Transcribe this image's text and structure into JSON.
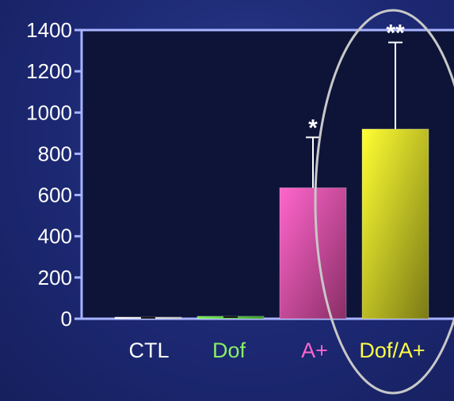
{
  "chart_data": {
    "type": "bar",
    "categories": [
      "CTL",
      "Dof",
      "A+",
      "Dof/A+"
    ],
    "values": [
      8,
      12,
      635,
      920
    ],
    "errors": [
      0,
      0,
      245,
      420
    ],
    "significance": [
      "",
      "",
      "*",
      "**"
    ],
    "ylim": [
      0,
      1400
    ],
    "yticks": [
      0,
      200,
      400,
      600,
      800,
      1000,
      1200,
      1400
    ],
    "grid": false,
    "label_colors": [
      "#ffffff",
      "#88ee66",
      "#ff66cc",
      "#ffff44"
    ],
    "highlight": "Dof/A+"
  },
  "colors": {
    "plot_bg": "#0d1438",
    "axis": "#a8b4ff",
    "ctl_bar": "#ffffff",
    "dof_bar": "#66dd44",
    "aplus_bar": "#ff66cc",
    "dofaplus_bar": "#ffff33",
    "ellipse": "#c8c8c8"
  }
}
